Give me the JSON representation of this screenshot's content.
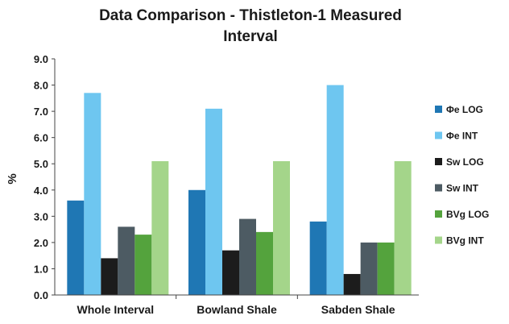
{
  "chart_data": {
    "type": "bar",
    "title_lines": [
      "Data Comparison - Thistleton-1 Measured",
      "Interval"
    ],
    "xlabel": "",
    "ylabel": "%",
    "ylim": [
      0,
      9
    ],
    "y_ticks": [
      "0.0",
      "1.0",
      "2.0",
      "3.0",
      "4.0",
      "5.0",
      "6.0",
      "7.0",
      "8.0",
      "9.0"
    ],
    "grid": false,
    "legend_position": "right",
    "categories": [
      "Whole Interval",
      "Bowland Shale",
      "Sabden Shale"
    ],
    "series": [
      {
        "name": "Φe LOG",
        "color": "#1f77b4",
        "values": [
          3.6,
          4.0,
          2.8
        ]
      },
      {
        "name": "Φe INT",
        "color": "#6ec6f0",
        "values": [
          7.7,
          7.1,
          8.0
        ]
      },
      {
        "name": "Sw LOG",
        "color": "#1c1c1c",
        "values": [
          1.4,
          1.7,
          0.8
        ]
      },
      {
        "name": "Sw INT",
        "color": "#4d5b63",
        "values": [
          2.6,
          2.9,
          2.0
        ]
      },
      {
        "name": "BVg LOG",
        "color": "#54a33d",
        "values": [
          2.3,
          2.4,
          2.0
        ]
      },
      {
        "name": "BVg INT",
        "color": "#a4d58a",
        "values": [
          5.1,
          5.1,
          5.1
        ]
      }
    ]
  }
}
